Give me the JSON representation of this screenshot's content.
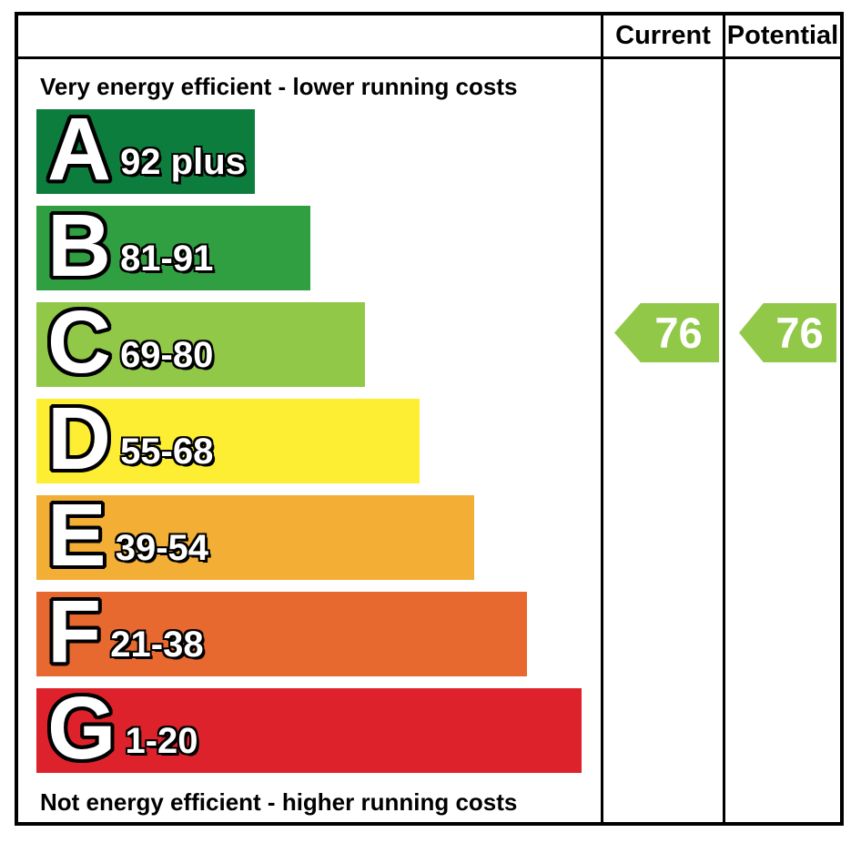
{
  "header": {
    "current": "Current",
    "potential": "Potential"
  },
  "captions": {
    "top": "Very energy efficient - lower running costs",
    "bottom": "Not energy efficient - higher running costs"
  },
  "bands": [
    {
      "letter": "A",
      "range": "92 plus",
      "color": "#0D7D3D"
    },
    {
      "letter": "B",
      "range": "81-91",
      "color": "#309F41"
    },
    {
      "letter": "C",
      "range": "69-80",
      "color": "#91C848"
    },
    {
      "letter": "D",
      "range": "55-68",
      "color": "#FDEE33"
    },
    {
      "letter": "E",
      "range": "39-54",
      "color": "#F3AE35"
    },
    {
      "letter": "F",
      "range": "21-38",
      "color": "#E8692F"
    },
    {
      "letter": "G",
      "range": "1-20",
      "color": "#DE222B"
    }
  ],
  "ratings": {
    "current": {
      "value": "76",
      "color": "#91C848"
    },
    "potential": {
      "value": "76",
      "color": "#91C848"
    }
  },
  "chart_data": {
    "type": "bar",
    "orientation": "horizontal",
    "title": "",
    "categories": [
      "A",
      "B",
      "C",
      "D",
      "E",
      "F",
      "G"
    ],
    "category_ranges": [
      "92 plus",
      "81-91",
      "69-80",
      "55-68",
      "39-54",
      "21-38",
      "1-20"
    ],
    "category_colors": [
      "#0D7D3D",
      "#309F41",
      "#91C848",
      "#FDEE33",
      "#F3AE35",
      "#E8692F",
      "#DE222B"
    ],
    "bar_relative_lengths": [
      0.4,
      0.5,
      0.6,
      0.7,
      0.8,
      0.9,
      1.0
    ],
    "columns": [
      "Current",
      "Potential"
    ],
    "values": {
      "current": 76,
      "potential": 76
    },
    "value_band": "C",
    "value_arrow_color": "#91C848",
    "top_caption": "Very energy efficient - lower running costs",
    "bottom_caption": "Not energy efficient - higher running costs",
    "legend_position": "none",
    "grid": false
  }
}
